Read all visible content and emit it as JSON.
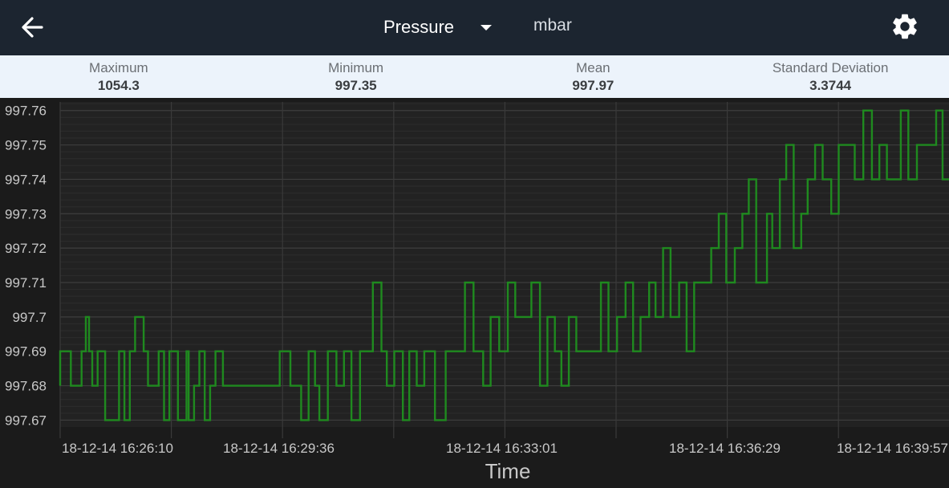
{
  "header": {
    "back_icon": "arrow-left-icon",
    "sensor": "Pressure",
    "dropdown_icon": "caret-down-icon",
    "unit": "mbar",
    "settings_icon": "gear-icon",
    "bar_color": "#1c2530"
  },
  "stats": {
    "maximum": {
      "label": "Maximum",
      "value": "1054.3"
    },
    "minimum": {
      "label": "Minimum",
      "value": "997.35"
    },
    "mean": {
      "label": "Mean",
      "value": "997.97"
    },
    "std": {
      "label": "Standard Deviation",
      "value": "3.3744"
    }
  },
  "chart_data": {
    "type": "line",
    "xlabel": "Time",
    "ylabel": "",
    "x_tick_labels": [
      "18-12-14 16:26:10",
      "18-12-14 16:29:36",
      "18-12-14 16:33:01",
      "18-12-14 16:36:29",
      "18-12-14 16:39:57"
    ],
    "y_tick_labels": [
      "997.76",
      "997.75",
      "997.74",
      "997.73",
      "997.72",
      "997.71",
      "997.7",
      "997.69",
      "997.68",
      "997.67"
    ],
    "y_ticks": [
      997.76,
      997.75,
      997.74,
      997.73,
      997.72,
      997.71,
      997.7,
      997.69,
      997.68,
      997.67
    ],
    "ylim": [
      997.668,
      997.7625
    ],
    "xlim_seconds": [
      0,
      830
    ],
    "grid": true,
    "line_color": "#1f8a1f",
    "series": [
      {
        "x_seconds": [
          0,
          10,
          20,
          24,
          27,
          30,
          35,
          42,
          55,
          60,
          65,
          70,
          78,
          82,
          92,
          97,
          102,
          110,
          118,
          120,
          125,
          130,
          135,
          140,
          145,
          152,
          158,
          163,
          168,
          175,
          182,
          190,
          198,
          205,
          215,
          225,
          232,
          238,
          242,
          250,
          258,
          265,
          272,
          280,
          285,
          292,
          300,
          305,
          312,
          320,
          326,
          333,
          340,
          350,
          360,
          370,
          378,
          386,
          395,
          402,
          410,
          418,
          425,
          433,
          440,
          448,
          455,
          462,
          468,
          475,
          482,
          490,
          498,
          505,
          512,
          520,
          528,
          535,
          542,
          550,
          556,
          563,
          570,
          578,
          585,
          592,
          600,
          608,
          615,
          622,
          630,
          637,
          643,
          650,
          660,
          665,
          672,
          678,
          685,
          692,
          698,
          705,
          712,
          720,
          727,
          735,
          742,
          750,
          758,
          765,
          772,
          780,
          785,
          792,
          800,
          806,
          812,
          818,
          824,
          830
        ],
        "y": [
          997.68,
          997.69,
          997.68,
          997.69,
          997.7,
          997.69,
          997.68,
          997.69,
          997.67,
          997.69,
          997.67,
          997.69,
          997.7,
          997.69,
          997.68,
          997.69,
          997.67,
          997.69,
          997.67,
          997.69,
          997.67,
          997.68,
          997.69,
          997.67,
          997.68,
          997.69,
          997.68,
          997.68,
          997.68,
          997.68,
          997.68,
          997.68,
          997.68,
          997.68,
          997.69,
          997.68,
          997.67,
          997.69,
          997.68,
          997.67,
          997.69,
          997.68,
          997.69,
          997.67,
          997.69,
          997.69,
          997.71,
          997.69,
          997.68,
          997.69,
          997.67,
          997.69,
          997.68,
          997.69,
          997.67,
          997.69,
          997.69,
          997.71,
          997.69,
          997.68,
          997.7,
          997.69,
          997.71,
          997.7,
          997.7,
          997.71,
          997.68,
          997.7,
          997.69,
          997.68,
          997.7,
          997.69,
          997.69,
          997.69,
          997.71,
          997.69,
          997.7,
          997.71,
          997.69,
          997.7,
          997.71,
          997.7,
          997.72,
          997.7,
          997.71,
          997.69,
          997.71,
          997.71,
          997.72,
          997.73,
          997.71,
          997.72,
          997.73,
          997.74,
          997.71,
          997.73,
          997.72,
          997.74,
          997.75,
          997.72,
          997.73,
          997.74,
          997.75,
          997.74,
          997.73,
          997.75,
          997.75,
          997.74,
          997.76,
          997.74,
          997.75,
          997.74,
          997.74,
          997.76,
          997.74,
          997.75,
          997.75,
          997.75,
          997.76,
          997.74
        ]
      }
    ]
  }
}
